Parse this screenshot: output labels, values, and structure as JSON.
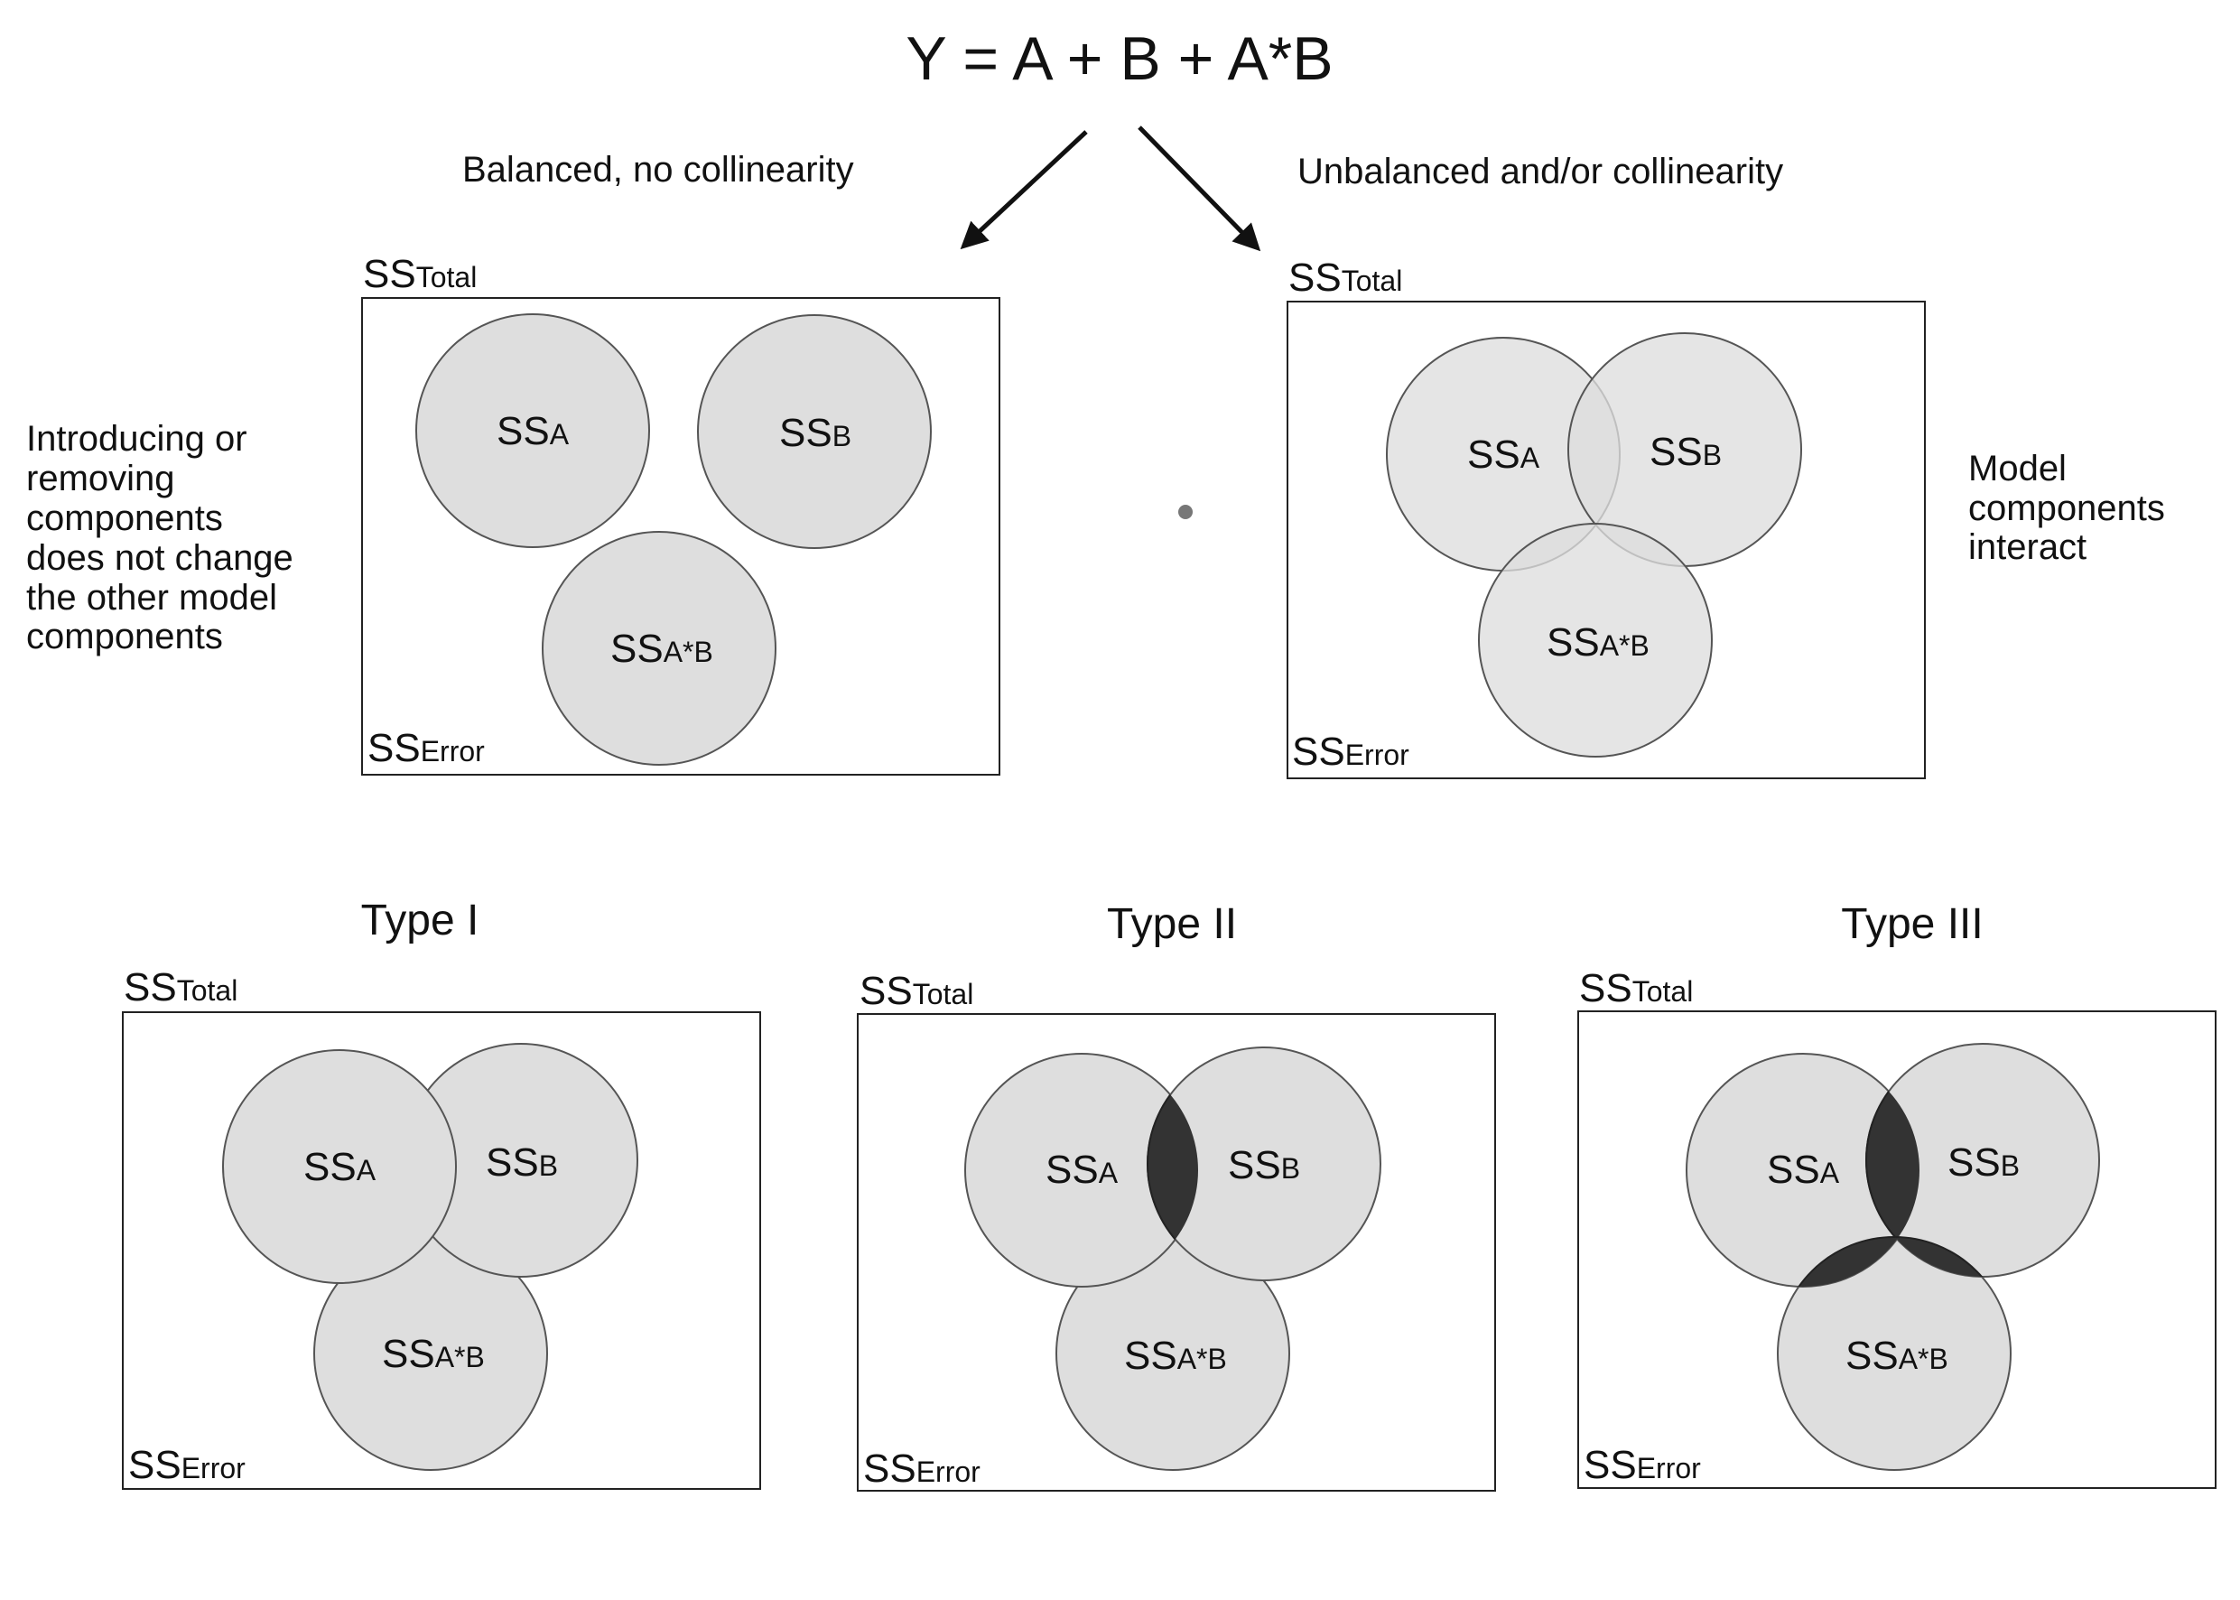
{
  "formula": "Y  = A + B + A*B",
  "branches": {
    "left": "Balanced, no collinearity",
    "right": "Unbalanced and/or collinearity"
  },
  "side_notes": {
    "left": [
      "Introducing or",
      "removing",
      "components",
      "does not change",
      "the other model",
      "components"
    ],
    "right": [
      "Model",
      "components",
      "interact"
    ]
  },
  "types": {
    "type1": "Type I",
    "type2": "Type II",
    "type3": "Type III"
  },
  "labels": {
    "ss": "SS",
    "total": "Total",
    "error": "Error",
    "a": "A",
    "b": "B",
    "ab": "A*B"
  },
  "colors": {
    "circle_fill": "#dedede",
    "overlap_highlight": "#333333",
    "outline": "#555555"
  }
}
